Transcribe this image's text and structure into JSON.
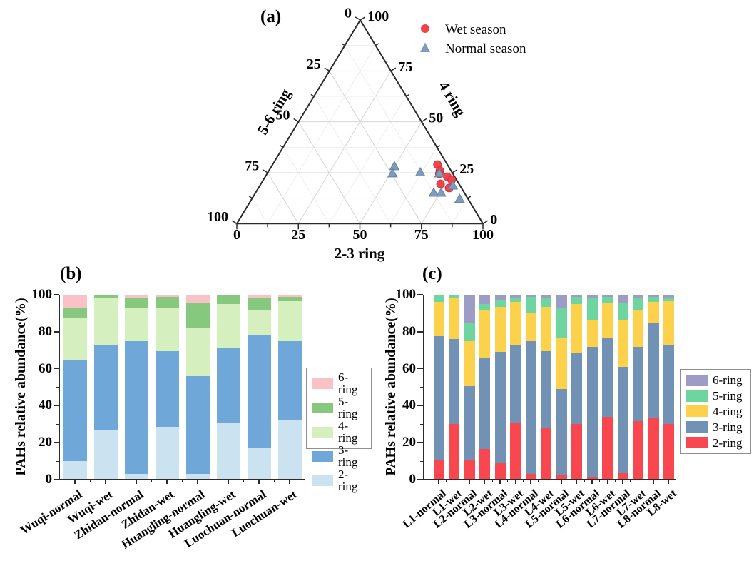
{
  "chart_data": [
    {
      "id": "panel_a_ternary",
      "type": "scatter",
      "variant": "ternary",
      "panel_label": "(a)",
      "axes": {
        "left_label": "5-6 ring",
        "right_label": "4 ring",
        "bottom_label": "2-3 ring",
        "range": [
          0,
          100
        ],
        "major_ticks": [
          0,
          25,
          50,
          75,
          100
        ],
        "minor_tick_step": 12.5,
        "grid": true
      },
      "point_order": [
        "2-3 ring",
        "4 ring",
        "5-6 ring"
      ],
      "series": [
        {
          "name": "Wet season",
          "marker": "circle",
          "color": "#f2434a",
          "edge_color": "#d22f38",
          "points": [
            [
              67,
              29,
              4
            ],
            [
              69.5,
              26,
              4.5
            ],
            [
              70,
              24.5,
              5.5
            ],
            [
              74,
              23,
              3
            ],
            [
              76.5,
              21.5,
              2
            ],
            [
              73,
              19.5,
              7.5
            ],
            [
              77.5,
              17.5,
              5
            ]
          ]
        },
        {
          "name": "Normal season",
          "marker": "triangle",
          "color": "#7d9cc0",
          "edge_color": "#66809f",
          "points": [
            [
              50,
              28,
              22
            ],
            [
              51,
              24.5,
              24.5
            ],
            [
              62,
              25,
              13
            ],
            [
              70,
              24.5,
              5.5
            ],
            [
              78.5,
              18.5,
              3
            ],
            [
              72.5,
              15,
              12.5
            ],
            [
              75.5,
              15,
              9.5
            ],
            [
              84.5,
              12,
              3.5
            ]
          ]
        }
      ]
    },
    {
      "id": "panel_b_stacked_bar",
      "type": "bar",
      "stacked": true,
      "panel_label": "(b)",
      "ylabel": "PAHs relative abundance(%)",
      "ylim": [
        0,
        100
      ],
      "yticks": [
        0,
        20,
        40,
        60,
        80,
        100
      ],
      "minor_ytick_step": 10,
      "grid": false,
      "legend_position": "right",
      "legend_top_to_bottom": [
        "6-ring",
        "5-ring",
        "4-ring",
        "3-ring",
        "2-ring"
      ],
      "categories": [
        "Wuqi-normal",
        "Wuqi-wet",
        "Zhidan-normal",
        "Zhidan-wet",
        "Huangling-normal",
        "Huangling-wet",
        "Luochuan-normal",
        "Luochuan-wet"
      ],
      "series": [
        {
          "name": "2-ring",
          "color": "#cbe2f1",
          "values": [
            10,
            26.5,
            3,
            28.5,
            3,
            30.5,
            17.5,
            32
          ]
        },
        {
          "name": "3-ring",
          "color": "#6fa8d8",
          "values": [
            55,
            46,
            72,
            41,
            53,
            40.5,
            61,
            43
          ]
        },
        {
          "name": "4-ring",
          "color": "#d5efbe",
          "values": [
            22.5,
            25.5,
            18,
            23,
            26,
            24,
            13.5,
            21.5
          ]
        },
        {
          "name": "5-ring",
          "color": "#86c87d",
          "values": [
            5.5,
            1.5,
            5.5,
            6.5,
            13.5,
            4.5,
            6.5,
            2.5
          ]
        },
        {
          "name": "6-ring",
          "color": "#f9c2c7",
          "values": [
            7,
            0.5,
            1.5,
            1,
            4.5,
            0.5,
            1.5,
            1
          ]
        }
      ]
    },
    {
      "id": "panel_c_stacked_bar",
      "type": "bar",
      "stacked": true,
      "panel_label": "(c)",
      "ylabel": "PAHs relative abundance(%)",
      "ylim": [
        0,
        100
      ],
      "yticks": [
        0,
        20,
        40,
        60,
        80,
        100
      ],
      "minor_ytick_step": 10,
      "grid": false,
      "legend_position": "right",
      "legend_top_to_bottom": [
        "6-ring",
        "5-ring",
        "4-ring",
        "3-ring",
        "2-ring"
      ],
      "categories": [
        "L1-normal",
        "L1-wet",
        "L2-normal",
        "L2-wet",
        "L3-normal",
        "L3-wet",
        "L4-normal",
        "L4-wet",
        "L5-normal",
        "L5-wet",
        "L6-normal",
        "L6-wet",
        "L7-normal",
        "L7-wet",
        "L8-normal",
        "L8-wet"
      ],
      "series": [
        {
          "name": "2-ring",
          "color": "#f8474e",
          "values": [
            10.5,
            30,
            11,
            16.5,
            9,
            31,
            3,
            28,
            2.5,
            30,
            1.5,
            34,
            3.5,
            31.5,
            33.5,
            30
          ]
        },
        {
          "name": "3-ring",
          "color": "#7191b5",
          "values": [
            67,
            46,
            39.5,
            49.5,
            60,
            42,
            72,
            41.5,
            46.5,
            38.5,
            70.5,
            42.5,
            57.5,
            40.5,
            51,
            43
          ]
        },
        {
          "name": "4-ring",
          "color": "#fcd24d",
          "values": [
            18.5,
            22,
            24.5,
            26,
            24.5,
            23,
            15,
            24,
            28,
            26.5,
            14.5,
            19,
            25,
            20,
            11.5,
            23.5
          ]
        },
        {
          "name": "5-ring",
          "color": "#6fd5a0",
          "values": [
            3.5,
            1.5,
            10,
            3,
            3.5,
            2,
            9,
            5,
            15.5,
            4,
            12,
            3.5,
            9.5,
            6.5,
            3,
            2
          ]
        },
        {
          "name": "6-ring",
          "color": "#9c9cc6",
          "values": [
            0.5,
            0.5,
            15,
            5,
            3,
            2,
            1,
            1.5,
            7.5,
            1,
            1.5,
            1,
            4.5,
            1.5,
            1,
            1.5
          ]
        }
      ]
    }
  ]
}
